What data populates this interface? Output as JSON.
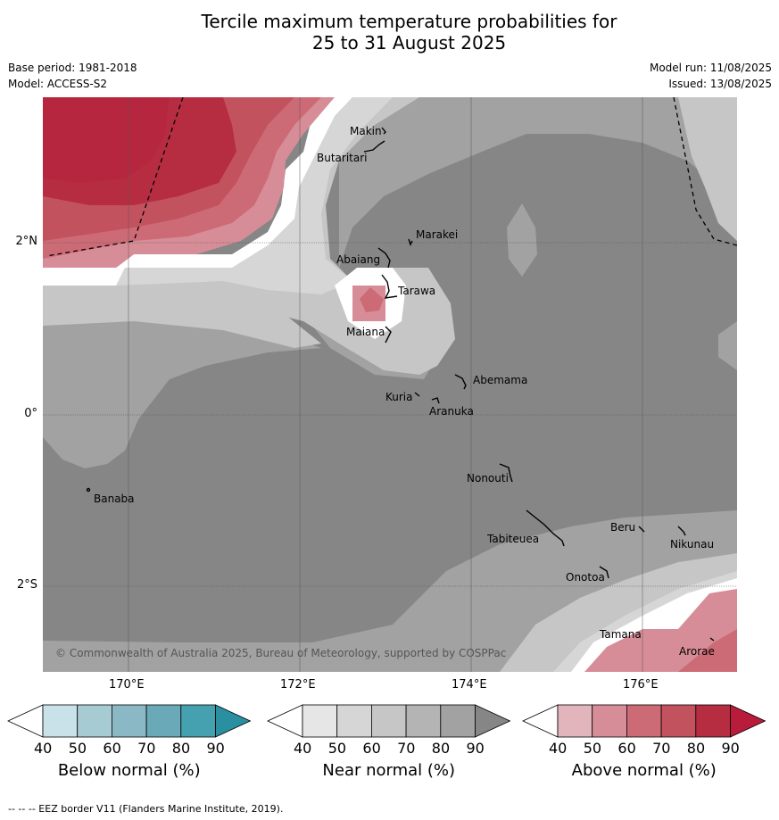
{
  "title_line1": "Tercile maximum temperature probabilities for",
  "title_line2": "25 to 31 August 2025",
  "base_period": "Base period: 1981-2018",
  "model": "Model: ACCESS-S2",
  "model_run": "Model run: 11/08/2025",
  "issued": "Issued: 13/08/2025",
  "lat_ticks": [
    "2°N",
    "0°",
    "2°S"
  ],
  "lon_ticks": [
    "170°E",
    "172°E",
    "174°E",
    "176°E"
  ],
  "islands": [
    "Makin",
    "Butaritari",
    "Marakei",
    "Abaiang",
    "Tarawa",
    "Maiana",
    "Abemama",
    "Kuria",
    "Aranuka",
    "Banaba",
    "Nonouti",
    "Tabiteuea",
    "Beru",
    "Nikunau",
    "Onotoa",
    "Tamana",
    "Arorae"
  ],
  "copyright": "© Commonwealth of Australia 2025, Bureau of Meteorology, supported by COSPPac",
  "colorbars": [
    {
      "title": "Below normal (%)",
      "ticks": [
        "40",
        "50",
        "60",
        "70",
        "80",
        "90"
      ],
      "colors": [
        "#ffffff",
        "#c9e2ea",
        "#a7cbd3",
        "#8ab9c5",
        "#6aaab8",
        "#45a0b0",
        "#2a8fa0"
      ]
    },
    {
      "title": "Near normal (%)",
      "ticks": [
        "40",
        "50",
        "60",
        "70",
        "80",
        "90"
      ],
      "colors": [
        "#ffffff",
        "#e6e6e6",
        "#d6d6d6",
        "#c6c6c6",
        "#b4b4b4",
        "#a2a2a2",
        "#868686"
      ]
    },
    {
      "title": "Above normal (%)",
      "ticks": [
        "40",
        "50",
        "60",
        "70",
        "80",
        "90"
      ],
      "colors": [
        "#ffffff",
        "#e2b5bd",
        "#d78d97",
        "#cc6b76",
        "#c3525f",
        "#b62d42",
        "#b81c3a"
      ]
    }
  ],
  "footer": "--  --  -- EEZ border V11 (Flanders Marine Institute, 2019)."
}
